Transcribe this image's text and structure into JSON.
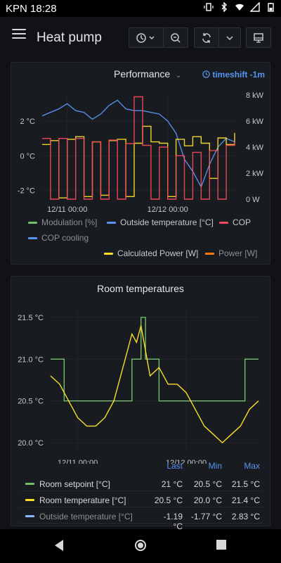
{
  "status_bar": {
    "carrier_time": "KPN 18:28"
  },
  "dashboard": {
    "title": "Heat pump"
  },
  "performance": {
    "title": "Performance",
    "timeshift": "timeshift -1m",
    "colors": {
      "modulation": "#73bf69",
      "outside": "#5794f2",
      "cop": "#f2495c",
      "cop_cooling": "#5794f2",
      "calc_power": "#fade2a",
      "power": "#ff780a"
    },
    "legend": [
      "Modulation [%]",
      "Outside temperature [°C]",
      "COP",
      "COP cooling",
      "Calculated Power [W]",
      "Power [W]"
    ],
    "chart_data": {
      "type": "line",
      "x_ticks": [
        "12/11 00:00",
        "12/12 00:00"
      ],
      "y_left_ticks": [
        "2 °C",
        "0 °C",
        "-2 °C"
      ],
      "y_right_ticks": [
        "8 kW",
        "6 kW",
        "4 kW",
        "2 kW",
        "0 W"
      ],
      "ylim_left_c": [
        -2.5,
        3.5
      ],
      "ylim_right_kw": [
        0,
        8
      ],
      "series": [
        {
          "name": "Outside temperature [°C]",
          "axis": "left",
          "x": [
            "12/10 18:00",
            "12/10 20:00",
            "12/10 22:00",
            "12/11 00:00",
            "12/11 02:00",
            "12/11 04:00",
            "12/11 06:00",
            "12/11 08:00",
            "12/11 10:00",
            "12/11 12:00",
            "12/11 14:00",
            "12/11 16:00",
            "12/11 18:00",
            "12/11 20:00",
            "12/11 22:00",
            "12/12 00:00",
            "12/12 02:00",
            "12/12 04:00",
            "12/12 06:00",
            "12/12 08:00",
            "12/12 10:00",
            "12/12 12:00",
            "12/12 14:00",
            "12/12 16:00"
          ],
          "values": [
            2.3,
            2.5,
            2.7,
            3.0,
            2.6,
            2.5,
            2.1,
            2.4,
            2.9,
            3.2,
            2.7,
            2.6,
            2.6,
            2.5,
            2.4,
            2.0,
            1.3,
            -0.2,
            -0.9,
            -1.8,
            -0.5,
            0.5,
            1.0,
            0.8
          ]
        },
        {
          "name": "Calculated Power [W]",
          "axis": "right",
          "x": [
            "12/10 18:00",
            "12/10 20:00",
            "12/10 22:00",
            "12/11 00:00",
            "12/11 02:00",
            "12/11 04:00",
            "12/11 06:00",
            "12/11 08:00",
            "12/11 10:00",
            "12/11 12:00",
            "12/11 14:00",
            "12/11 16:00",
            "12/11 18:00",
            "12/11 20:00",
            "12/11 22:00",
            "12/12 00:00",
            "12/12 02:00",
            "12/12 04:00",
            "12/12 06:00",
            "12/12 08:00",
            "12/12 10:00",
            "12/12 12:00",
            "12/12 14:00",
            "12/12 16:00"
          ],
          "values": [
            4.2,
            4.5,
            0.1,
            4.6,
            4.8,
            0.2,
            4.4,
            0.3,
            4.5,
            4.6,
            0.2,
            4.3,
            5.6,
            4.4,
            4.3,
            0.2,
            4.6,
            4.1,
            4.8,
            4.3,
            1.6,
            4.7,
            4.2,
            5.1
          ]
        },
        {
          "name": "COP",
          "axis": "left",
          "x": [
            "12/10 18:00",
            "12/10 20:00",
            "12/10 22:00",
            "12/11 00:00",
            "12/11 02:00",
            "12/11 04:00",
            "12/11 06:00",
            "12/11 08:00",
            "12/11 10:00",
            "12/11 12:00",
            "12/11 14:00",
            "12/11 16:00",
            "12/11 18:00",
            "12/11 20:00",
            "12/11 22:00",
            "12/12 00:00",
            "12/12 02:00",
            "12/12 04:00",
            "12/12 06:00",
            "12/12 08:00",
            "12/12 10:00",
            "12/12 12:00",
            "12/12 14:00",
            "12/12 16:00"
          ],
          "values": [
            1.0,
            -2.5,
            1.0,
            -2.5,
            1.0,
            -2.5,
            0.8,
            -2.5,
            0.9,
            -2.5,
            0.7,
            3.4,
            0.6,
            -2.5,
            0.5,
            -2.5,
            0.0,
            -2.5,
            0.2,
            -2.5,
            0.3,
            -2.5,
            0.6,
            0.8
          ]
        }
      ]
    }
  },
  "rooms": {
    "title": "Room temperatures",
    "colors": {
      "setpoint": "#73bf69",
      "room": "#fade2a",
      "outside": "#8ab8ff"
    },
    "table_headers": [
      "Last",
      "Min",
      "Max"
    ],
    "rows": [
      {
        "name": "Room setpoint [°C]",
        "last": "21 °C",
        "min": "20.5 °C",
        "max": "21.5 °C"
      },
      {
        "name": "Room temperature [°C]",
        "last": "20.5 °C",
        "min": "20.0 °C",
        "max": "21.4 °C"
      },
      {
        "name": "Outside temperature [°C]",
        "last": "-1.19 °C",
        "min": "-1.77 °C",
        "max": "2.83 °C"
      }
    ],
    "chart_data": {
      "type": "line",
      "x_ticks": [
        "12/11 00:00",
        "12/12 00:00"
      ],
      "y_ticks": [
        "21.5 °C",
        "21.0 °C",
        "20.5 °C",
        "20.0 °C"
      ],
      "ylim": [
        19.9,
        21.6
      ],
      "series": [
        {
          "name": "Room setpoint [°C]",
          "x": [
            "12/10 18:00",
            "12/10 21:00",
            "12/10 21:00",
            "12/11 12:00",
            "12/11 12:00",
            "12/11 14:00",
            "12/11 14:00",
            "12/11 15:00",
            "12/11 15:00",
            "12/11 18:00",
            "12/11 18:00",
            "12/12 13:00",
            "12/12 13:00",
            "12/12 16:00"
          ],
          "values": [
            21.0,
            21.0,
            20.5,
            20.5,
            21.0,
            21.0,
            21.5,
            21.5,
            21.0,
            21.0,
            20.5,
            20.5,
            21.0,
            21.0
          ]
        },
        {
          "name": "Room temperature [°C]",
          "x": [
            "12/10 18:00",
            "12/10 20:00",
            "12/10 22:00",
            "12/11 00:00",
            "12/11 02:00",
            "12/11 04:00",
            "12/11 06:00",
            "12/11 08:00",
            "12/11 10:00",
            "12/11 12:00",
            "12/11 13:00",
            "12/11 14:00",
            "12/11 16:00",
            "12/11 18:00",
            "12/11 20:00",
            "12/11 22:00",
            "12/12 00:00",
            "12/12 02:00",
            "12/12 04:00",
            "12/12 06:00",
            "12/12 08:00",
            "12/12 10:00",
            "12/12 12:00",
            "12/12 14:00",
            "12/12 16:00"
          ],
          "values": [
            20.8,
            20.7,
            20.5,
            20.3,
            20.2,
            20.2,
            20.3,
            20.5,
            20.9,
            21.3,
            21.2,
            21.4,
            20.8,
            20.9,
            20.7,
            20.7,
            20.6,
            20.4,
            20.2,
            20.1,
            20.0,
            20.1,
            20.2,
            20.4,
            20.5
          ]
        }
      ]
    }
  }
}
